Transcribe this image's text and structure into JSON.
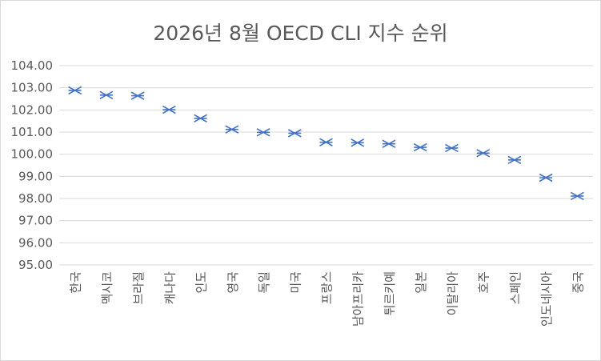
{
  "chart_data": {
    "type": "scatter",
    "title": "2026년 8월 OECD CLI 지수 순위",
    "xlabel": "",
    "ylabel": "",
    "categories": [
      "한국",
      "멕시코",
      "브라질",
      "캐나다",
      "인도",
      "영국",
      "독일",
      "미국",
      "프랑스",
      "남아프리카",
      "튀르키예",
      "일본",
      "이탈리아",
      "호주",
      "스페인",
      "인도네시아",
      "중국"
    ],
    "values": [
      102.88,
      102.67,
      102.64,
      102.01,
      101.62,
      101.12,
      100.99,
      100.95,
      100.54,
      100.52,
      100.47,
      100.31,
      100.28,
      100.05,
      99.74,
      98.94,
      98.11
    ],
    "ylim": [
      95,
      104
    ],
    "yticks": [
      "104.00",
      "103.00",
      "102.00",
      "101.00",
      "100.00",
      "99.00",
      "98.00",
      "97.00",
      "96.00",
      "95.00"
    ],
    "grid": true,
    "legend": "none",
    "marker": "x-cross",
    "marker_color": "#4472c4",
    "grid_color": "#d9d9d9",
    "text_color": "#595959"
  }
}
